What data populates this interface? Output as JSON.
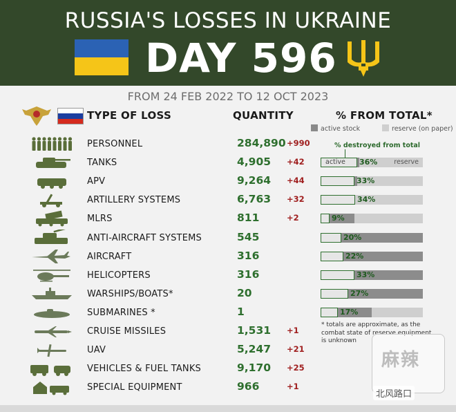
{
  "header": {
    "title": "RUSSIA'S LOSSES IN UKRAINE",
    "day": "DAY 596",
    "period": "FROM 24 FEB 2022 TO 12 OCT 2023"
  },
  "columns": {
    "type": "TYPE OF LOSS",
    "quantity": "QUANTITY",
    "percent": "% FROM TOTAL*"
  },
  "legend": {
    "active": "active stock",
    "reserve": "reserve (on paper)",
    "destroyed_note": "% destroyed from total",
    "bar_active": "active",
    "bar_reserve": "reserve"
  },
  "colors": {
    "header_bg": "#33482a",
    "quantity": "#2e6f2e",
    "delta": "#a02020",
    "active_stock": "#8c8c8c",
    "reserve": "#cfcfcf"
  },
  "rows": [
    {
      "label": "PERSONNEL",
      "qty": "284,890",
      "delta": "+990",
      "icon": "soldiers-icon"
    },
    {
      "label": "TANKS",
      "qty": "4,905",
      "delta": "+42",
      "icon": "tank-icon",
      "pct": "36%",
      "destroyed": 0.36,
      "active": 0.38
    },
    {
      "label": "APV",
      "qty": "9,264",
      "delta": "+44",
      "icon": "apv-icon",
      "pct": "33%",
      "destroyed": 0.33,
      "active": 0.36
    },
    {
      "label": "ARTILLERY SYSTEMS",
      "qty": "6,763",
      "delta": "+32",
      "icon": "artillery-icon",
      "pct": "34%",
      "destroyed": 0.34,
      "active": 0.16
    },
    {
      "label": "MLRS",
      "qty": "811",
      "delta": "+2",
      "icon": "mlrs-icon",
      "pct": "9%",
      "destroyed": 0.09,
      "active": 0.33
    },
    {
      "label": "ANTI-AIRCRAFT SYSTEMS",
      "qty": "545",
      "delta": "",
      "icon": "anti-aircraft-icon",
      "pct": "20%",
      "destroyed": 0.2,
      "active": 1.0
    },
    {
      "label": "AIRCRAFT",
      "qty": "316",
      "delta": "",
      "icon": "aircraft-icon",
      "pct": "22%",
      "destroyed": 0.22,
      "active": 1.0
    },
    {
      "label": "HELICOPTERS",
      "qty": "316",
      "delta": "",
      "icon": "helicopter-icon",
      "pct": "33%",
      "destroyed": 0.33,
      "active": 1.0
    },
    {
      "label": "WARSHIPS/BOATS*",
      "qty": "20",
      "delta": "",
      "icon": "warship-icon",
      "pct": "27%",
      "destroyed": 0.27,
      "active": 1.0
    },
    {
      "label": "SUBMARINES *",
      "qty": "1",
      "delta": "",
      "icon": "submarine-icon",
      "pct": "17%",
      "destroyed": 0.17,
      "active": 0.5
    },
    {
      "label": "CRUISE MISSILES",
      "qty": "1,531",
      "delta": "+1",
      "icon": "cruise-missile-icon"
    },
    {
      "label": "UAV",
      "qty": "5,247",
      "delta": "+21",
      "icon": "uav-icon"
    },
    {
      "label": "VEHICLES & FUEL TANKS",
      "qty": "9,170",
      "delta": "+25",
      "icon": "vehicles-icon"
    },
    {
      "label": "SPECIAL EQUIPMENT",
      "qty": "966",
      "delta": "+1",
      "icon": "special-equipment-icon"
    }
  ],
  "footnote": "* totals are approximate, as the combat state of reserve equipment is unknown",
  "watermark": {
    "logo_text": "麻辣",
    "wechat": "北风路口"
  }
}
